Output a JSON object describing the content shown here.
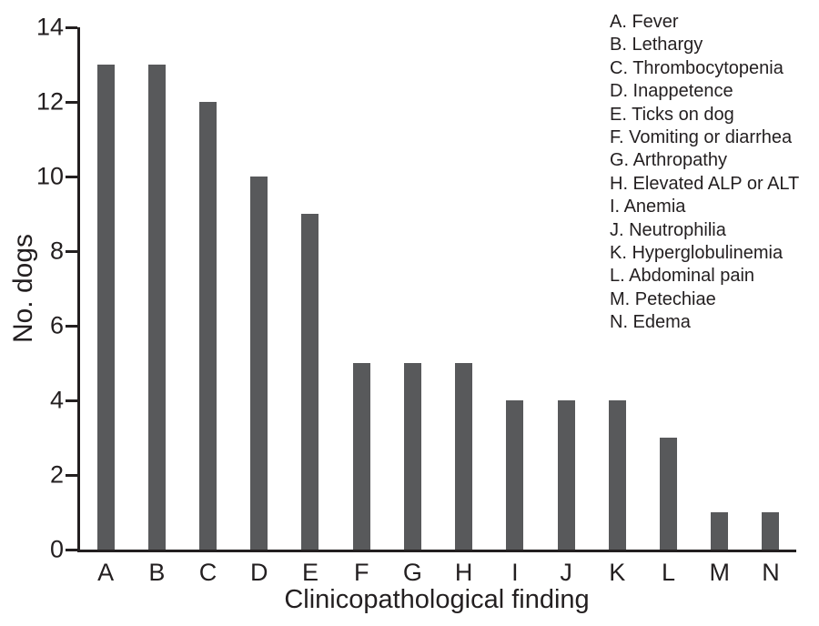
{
  "chart_data": {
    "type": "bar",
    "categories": [
      "A",
      "B",
      "C",
      "D",
      "E",
      "F",
      "G",
      "H",
      "I",
      "J",
      "K",
      "L",
      "M",
      "N"
    ],
    "values": [
      13,
      13,
      12,
      10,
      9,
      5,
      5,
      5,
      4,
      4,
      4,
      3,
      1,
      1
    ],
    "xlabel": "Clinicopathological finding",
    "ylabel": "No. dogs",
    "ylim": [
      0,
      14
    ],
    "yticks": [
      0,
      2,
      4,
      6,
      8,
      10,
      12,
      14
    ],
    "grid": false,
    "bar_color": "#58595b",
    "axis_color": "#231f20",
    "legend_position": "top-right",
    "legend": {
      "items": [
        "A. Fever",
        "B. Lethargy",
        "C. Thrombocytopenia",
        "D. Inappetence",
        "E. Ticks on dog",
        "F. Vomiting or diarrhea",
        "G. Arthropathy",
        "H. Elevated ALP or ALT",
        "I. Anemia",
        "J. Neutrophilia",
        "K. Hyperglobulinemia",
        "L. Abdominal pain",
        "M. Petechiae",
        "N. Edema"
      ]
    }
  }
}
